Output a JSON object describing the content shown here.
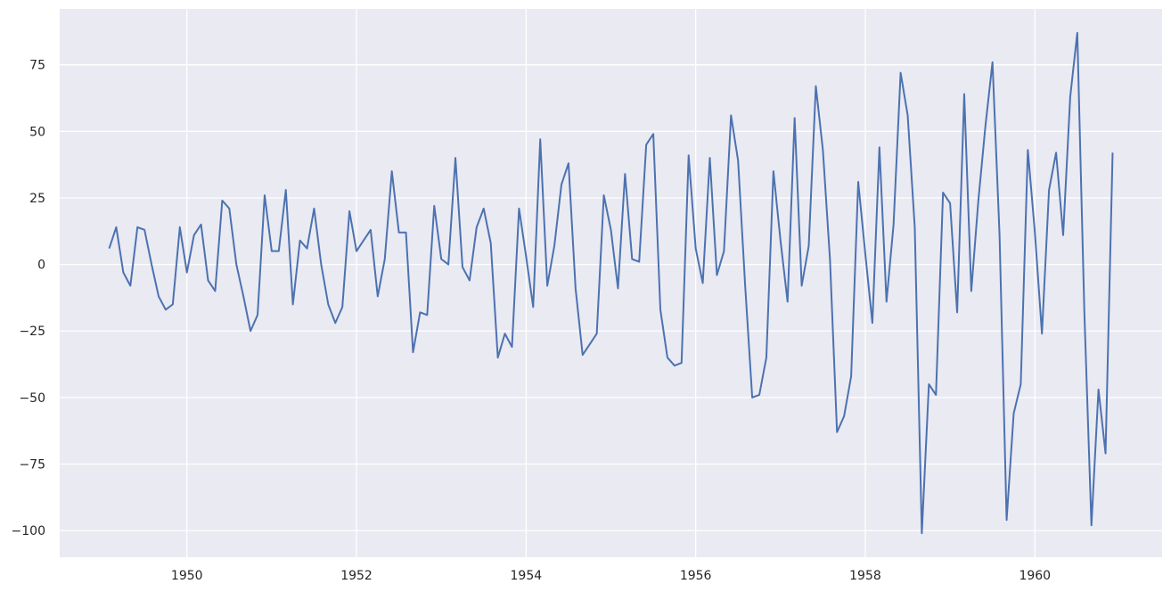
{
  "chart_data": {
    "type": "line",
    "title": "",
    "xlabel": "",
    "ylabel": "",
    "xlim": [
      1948.5,
      1961.5
    ],
    "ylim": [
      -110,
      96
    ],
    "grid": true,
    "legend": "none",
    "style": {
      "background": "#eaeaf2",
      "grid_color": "#ffffff",
      "line_color": "#4c72b0",
      "text_color": "#262626"
    },
    "x_ticks": [
      {
        "value": 1950,
        "label": "1950"
      },
      {
        "value": 1952,
        "label": "1952"
      },
      {
        "value": 1954,
        "label": "1954"
      },
      {
        "value": 1956,
        "label": "1956"
      },
      {
        "value": 1958,
        "label": "1958"
      },
      {
        "value": 1960,
        "label": "1960"
      }
    ],
    "y_ticks": [
      {
        "value": 75,
        "label": "75"
      },
      {
        "value": 50,
        "label": "50"
      },
      {
        "value": 25,
        "label": "25"
      },
      {
        "value": 0,
        "label": "0"
      },
      {
        "value": -25,
        "label": "−25"
      },
      {
        "value": -50,
        "label": "−50"
      },
      {
        "value": -75,
        "label": "−75"
      },
      {
        "value": -100,
        "label": "−100"
      }
    ],
    "x_start": "1949-02",
    "x_step": "1 month",
    "series": [
      {
        "name": "",
        "values": [
          6,
          14,
          -3,
          -8,
          14,
          13,
          0,
          -12,
          -17,
          -15,
          14,
          -3,
          11,
          15,
          -6,
          -10,
          24,
          21,
          0,
          -12,
          -25,
          -19,
          26,
          5,
          5,
          28,
          -15,
          9,
          6,
          21,
          0,
          -15,
          -22,
          -16,
          20,
          5,
          9,
          13,
          -12,
          2,
          35,
          12,
          12,
          -33,
          -18,
          -19,
          22,
          2,
          0,
          40,
          -1,
          -6,
          14,
          21,
          8,
          -35,
          -26,
          -31,
          21,
          3,
          -16,
          47,
          -8,
          7,
          30,
          38,
          -9,
          -34,
          -30,
          -26,
          26,
          13,
          -9,
          34,
          2,
          1,
          45,
          49,
          -17,
          -35,
          -38,
          -37,
          41,
          6,
          -7,
          40,
          -4,
          5,
          56,
          39,
          -8,
          -50,
          -49,
          -35,
          35,
          9,
          -14,
          55,
          -8,
          7,
          67,
          43,
          2,
          -63,
          -57,
          -42,
          31,
          4,
          -22,
          44,
          -14,
          15,
          72,
          56,
          14,
          -101,
          -45,
          -49,
          27,
          23,
          -18,
          64,
          -10,
          24,
          52,
          76,
          11,
          -96,
          -56,
          -45,
          43,
          12,
          -26,
          28,
          42,
          11,
          63,
          87,
          -18,
          -98,
          -47,
          -71,
          42
        ]
      }
    ]
  }
}
